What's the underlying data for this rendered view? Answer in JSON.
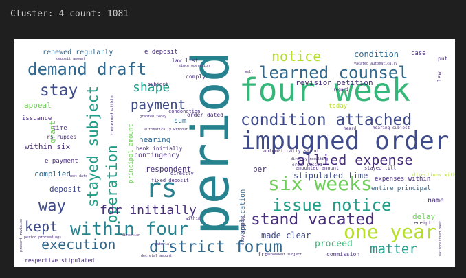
{
  "output": {
    "stdout_label": "Cluster:",
    "cluster_id": "4",
    "count_label": "count:",
    "count_value": "1081"
  },
  "palette": {
    "background": "#1f1f1f",
    "stdout_text": "#cccccc",
    "canvas": "#ffffff",
    "purple": "#472d7b",
    "indigo": "#3e4a89",
    "blue": "#31688e",
    "teal": "#26828e",
    "green": "#1f9e89",
    "lime": "#35b779",
    "yellowgreen": "#6ece58",
    "yellow": "#b5de2b"
  },
  "wordcloud": {
    "words": [
      {
        "text": "period",
        "color": "teal"
      },
      {
        "text": "four week",
        "color": "lime"
      },
      {
        "text": "impugned order",
        "color": "indigo"
      },
      {
        "text": "learned counsel",
        "color": "blue"
      },
      {
        "text": "demand draft",
        "color": "blue"
      },
      {
        "text": "condition attached",
        "color": "indigo"
      },
      {
        "text": "six weeks",
        "color": "yellowgreen"
      },
      {
        "text": "allied expense",
        "color": "purple"
      },
      {
        "text": "rs",
        "color": "teal"
      },
      {
        "text": "issue notice",
        "color": "green"
      },
      {
        "text": "within four",
        "color": "teal"
      },
      {
        "text": "stand vacated",
        "color": "purple"
      },
      {
        "text": "district forum",
        "color": "blue"
      },
      {
        "text": "one year",
        "color": "yellow"
      },
      {
        "text": "stayed subject",
        "color": "green"
      },
      {
        "text": "operation",
        "color": "green"
      },
      {
        "text": "execution",
        "color": "blue"
      },
      {
        "text": "stay",
        "color": "indigo"
      },
      {
        "text": "way",
        "color": "indigo"
      },
      {
        "text": "kept",
        "color": "indigo"
      },
      {
        "text": "notice",
        "color": "yellow"
      },
      {
        "text": "fdr initially",
        "color": "purple"
      },
      {
        "text": "payment",
        "color": "indigo"
      },
      {
        "text": "shape",
        "color": "green"
      },
      {
        "text": "matter",
        "color": "green"
      },
      {
        "text": "proceed",
        "color": "lime"
      },
      {
        "text": "made clear",
        "color": "indigo"
      },
      {
        "text": "revision petition",
        "color": "purple"
      },
      {
        "text": "stipulated time",
        "color": "indigo"
      },
      {
        "text": "condition",
        "color": "blue"
      },
      {
        "text": "renewed regularly",
        "color": "blue"
      },
      {
        "text": "e deposit",
        "color": "purple"
      },
      {
        "text": "within six",
        "color": "purple"
      },
      {
        "text": "complied",
        "color": "blue"
      },
      {
        "text": "deposit",
        "color": "indigo"
      },
      {
        "text": "respondent",
        "color": "purple"
      },
      {
        "text": "hearing",
        "color": "blue"
      },
      {
        "text": "contingency",
        "color": "purple"
      },
      {
        "text": "sum",
        "color": "blue"
      },
      {
        "text": "appeal",
        "color": "yellowgreen"
      },
      {
        "text": "issuance",
        "color": "purple"
      },
      {
        "text": "grant",
        "color": "yellowgreen"
      },
      {
        "text": "per",
        "color": "purple"
      },
      {
        "text": "name",
        "color": "purple"
      },
      {
        "text": "delay",
        "color": "yellowgreen"
      },
      {
        "text": "principal amount",
        "color": "yellowgreen"
      },
      {
        "text": "application",
        "color": "blue"
      },
      {
        "text": "today",
        "color": "yellow"
      },
      {
        "text": "expenses within",
        "color": "purple"
      },
      {
        "text": "entire principal",
        "color": "blue"
      },
      {
        "text": "directions within",
        "color": "yellow"
      },
      {
        "text": "case",
        "color": "purple"
      },
      {
        "text": "put",
        "color": "purple"
      },
      {
        "text": "law",
        "color": "purple"
      },
      {
        "text": "commission",
        "color": "purple"
      },
      {
        "text": "respective stipulated",
        "color": "purple"
      },
      {
        "text": "e payment",
        "color": "purple"
      },
      {
        "text": "time",
        "color": "purple"
      },
      {
        "text": "rs rupees",
        "color": "purple"
      },
      {
        "text": "order dated",
        "color": "purple"
      },
      {
        "text": "bank initially",
        "color": "purple"
      },
      {
        "text": "fixed deposit",
        "color": "purple"
      },
      {
        "text": "directly",
        "color": "purple"
      },
      {
        "text": "law list",
        "color": "purple"
      },
      {
        "text": "comply",
        "color": "purple"
      },
      {
        "text": "subject",
        "color": "purple"
      },
      {
        "text": "regard",
        "color": "purple"
      },
      {
        "text": "receipt",
        "color": "purple"
      },
      {
        "text": "stayed till",
        "color": "purple"
      },
      {
        "text": "automatically stand",
        "color": "purple"
      },
      {
        "text": "order passed",
        "color": "purple"
      },
      {
        "text": "amounted amount",
        "color": "purple"
      },
      {
        "text": "stay granted",
        "color": "purple"
      },
      {
        "text": "concerned within",
        "color": "purple"
      },
      {
        "text": "condonation",
        "color": "purple"
      },
      {
        "text": "hearing subject",
        "color": "purple"
      },
      {
        "text": "heard",
        "color": "purple"
      },
      {
        "text": "deposit amount",
        "color": "purple"
      },
      {
        "text": "vacated automatically",
        "color": "purple"
      },
      {
        "text": "granted today",
        "color": "purple"
      },
      {
        "text": "automatically without",
        "color": "purple"
      },
      {
        "text": "directly resulting",
        "color": "purple"
      },
      {
        "text": "nationalised bank",
        "color": "purple"
      },
      {
        "text": "fro",
        "color": "purple"
      },
      {
        "text": "respondent subject",
        "color": "purple"
      },
      {
        "text": "decretal amount",
        "color": "purple"
      },
      {
        "text": "material",
        "color": "purple"
      },
      {
        "text": "direction",
        "color": "purple"
      },
      {
        "text": "well",
        "color": "purple"
      },
      {
        "text": "since operation",
        "color": "purple"
      },
      {
        "text": "period proceedings",
        "color": "purple"
      },
      {
        "text": "present revision",
        "color": "purple"
      },
      {
        "text": "next date",
        "color": "purple"
      },
      {
        "text": "within",
        "color": "purple"
      }
    ]
  }
}
